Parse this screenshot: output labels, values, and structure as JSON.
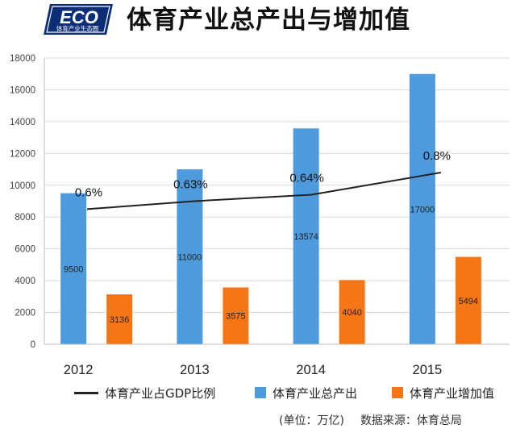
{
  "logo": {
    "main": "ECO",
    "sub": "体育产业生态圈"
  },
  "header": {
    "title": "体育产业总产出与增加值"
  },
  "legend": {
    "line_label": "体育产业占GDP比例",
    "bar1_label": "体育产业总产出",
    "bar2_label": "体育产业增加值"
  },
  "footer": {
    "unit": "(单位：万亿)",
    "source": "数据来源：体育总局"
  },
  "colors": {
    "output": "#4d9bdc",
    "value_added": "#f57617",
    "line": "#222222",
    "grid": "#dcdcdc"
  },
  "chart_data": {
    "type": "bar",
    "title": "体育产业总产出与增加值",
    "categories": [
      "2012",
      "2013",
      "2014",
      "2015"
    ],
    "series": [
      {
        "name": "体育产业总产出",
        "kind": "bar",
        "values": [
          9500,
          11000,
          13574,
          17000
        ],
        "labels": [
          "9500",
          "11000",
          "13574",
          "17000"
        ]
      },
      {
        "name": "体育产业增加值",
        "kind": "bar",
        "values": [
          3136,
          3575,
          4040,
          5494
        ],
        "labels": [
          "3136",
          "3575",
          "4040",
          "5494"
        ]
      },
      {
        "name": "体育产业占GDP比例",
        "kind": "line",
        "values": [
          0.6,
          0.63,
          0.64,
          0.8
        ],
        "labels": [
          "0.6%",
          "0.63%",
          "0.64%",
          "0.8%"
        ],
        "plotted_at": [
          8500,
          9000,
          9400,
          10800
        ]
      }
    ],
    "y_ticks": [
      "0",
      "2000",
      "4000",
      "6000",
      "8000",
      "10000",
      "12000",
      "14000",
      "16000",
      "18000"
    ],
    "ylim": [
      0,
      18000
    ],
    "grid": true,
    "legend_position": "bottom"
  }
}
